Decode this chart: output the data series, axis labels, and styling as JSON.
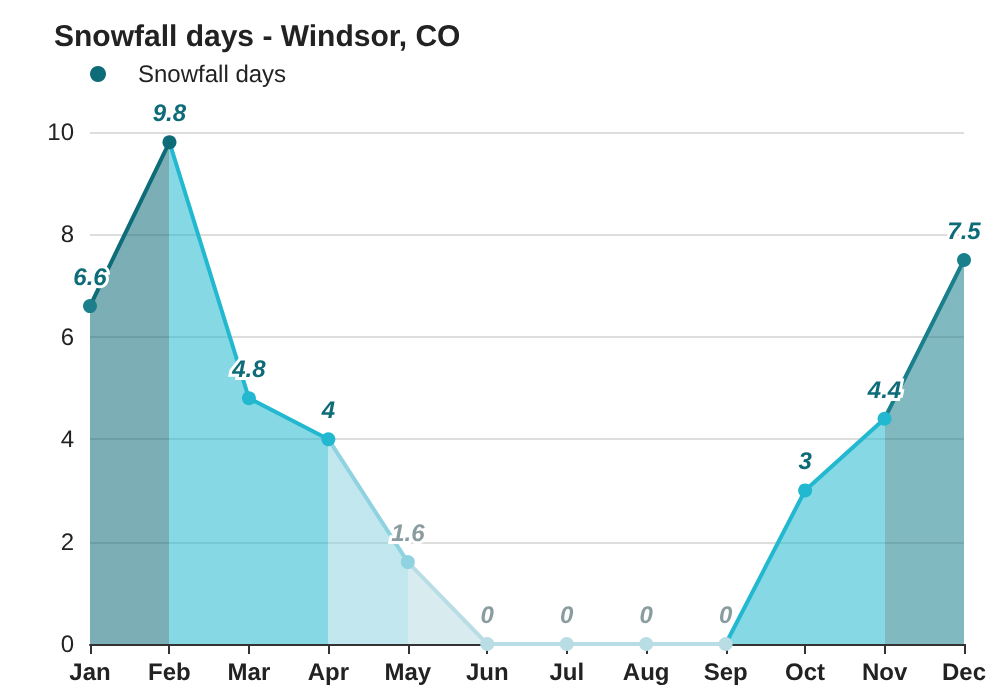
{
  "chart_data": {
    "type": "area",
    "title": "Snowfall days - Windsor, CO",
    "categories": [
      "Jan",
      "Feb",
      "Mar",
      "Apr",
      "May",
      "Jun",
      "Jul",
      "Aug",
      "Sep",
      "Oct",
      "Nov",
      "Dec"
    ],
    "series": [
      {
        "name": "Snowfall days",
        "color": "#0e6b78",
        "colors": [
          "#1e7f8c",
          "#0e6b78",
          "#22b8cf",
          "#22b8cf",
          "#8fd3e0",
          "#b9dde4",
          "#b9dde4",
          "#b9dde4",
          "#b9dde4",
          "#22b8cf",
          "#22b8cf",
          "#1a7f8c"
        ],
        "values": [
          6.6,
          9.8,
          4.8,
          4,
          1.6,
          0,
          0,
          0,
          0,
          3,
          4.4,
          7.5
        ]
      }
    ],
    "ylim": [
      0,
      10
    ],
    "yticks": [
      0,
      2,
      4,
      6,
      8,
      10
    ],
    "grid": "y",
    "legend": "top left",
    "marker": "circle",
    "data_labels": true
  }
}
